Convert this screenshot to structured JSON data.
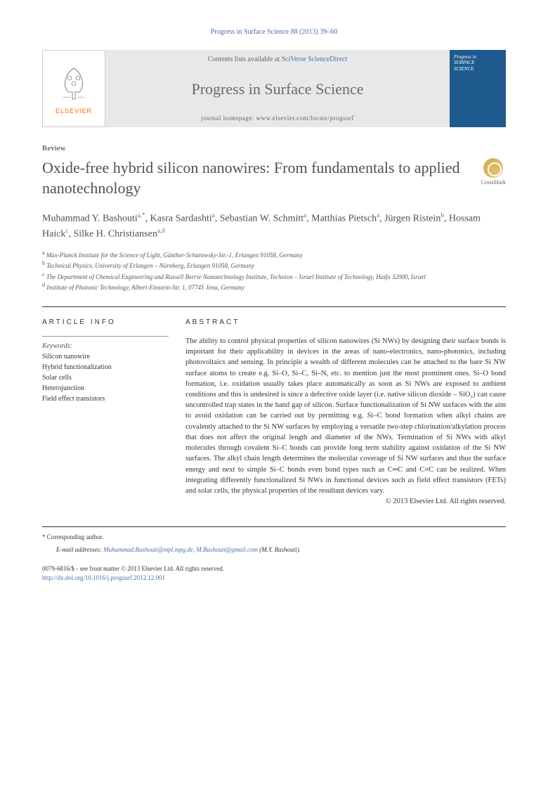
{
  "citation": "Progress in Surface Science 88 (2013) 39–60",
  "banner": {
    "publisher_name": "ELSEVIER",
    "contents_prefix": "Contents lists available at",
    "contents_link": "SciVerse ScienceDirect",
    "journal_name": "Progress in Surface Science",
    "homepage_label": "journal homepage:",
    "homepage_url": "www.elsevier.com/locate/progsurf",
    "cover_line1": "Progress in",
    "cover_line2": "SURFACE",
    "cover_line3": "SCIENCE",
    "logo_color": "#ff6600",
    "banner_bg": "#e8e8e8",
    "cover_bg": "#1e5a8e"
  },
  "article": {
    "type": "Review",
    "title": "Oxide-free hybrid silicon nanowires: From fundamentals to applied nanotechnology",
    "crossmark_label": "CrossMark"
  },
  "authors_html": "Muhammad Y. Bashouti",
  "authors": [
    {
      "name": "Muhammad Y. Bashouti",
      "sup": "a,*"
    },
    {
      "name": "Kasra Sardashti",
      "sup": "a"
    },
    {
      "name": "Sebastian W. Schmitt",
      "sup": "a"
    },
    {
      "name": "Matthias Pietsch",
      "sup": "a"
    },
    {
      "name": "Jürgen Ristein",
      "sup": "b"
    },
    {
      "name": "Hossam Haick",
      "sup": "c"
    },
    {
      "name": "Silke H. Christiansen",
      "sup": "a,d"
    }
  ],
  "affiliations": [
    {
      "sup": "a",
      "text": "Max-Planck Institute for the Science of Light, Günther-Scharowsky-Str.-1, Erlangen 91058, Germany"
    },
    {
      "sup": "b",
      "text": "Technical Physics, University of Erlangen – Nürnberg, Erlangen 91058, Germany"
    },
    {
      "sup": "c",
      "text": "The Department of Chemical Engineering and Russell Berrie Nanotechnology Institute, Technion – Israel Institute of Technology, Haifa 32000, Israel"
    },
    {
      "sup": "d",
      "text": "Institute of Photonic Technology, Albert-Einstein-Str. 1, 07745 Jena, Germany"
    }
  ],
  "info": {
    "heading": "ARTICLE INFO",
    "keywords_label": "Keywords:",
    "keywords": [
      "Silicon nanowire",
      "Hybrid functionalization",
      "Solar cells",
      "Heterojunction",
      "Field effect transistors"
    ]
  },
  "abstract": {
    "heading": "ABSTRACT",
    "text": "The ability to control physical properties of silicon nanowires (Si NWs) by designing their surface bonds is important for their applicability in devices in the areas of nano-electronics, nano-photonics, including photovoltaics and sensing. In principle a wealth of different molecules can be attached to the bare Si NW surface atoms to create e.g. Si–O, Si–C, Si–N, etc. to mention just the most prominent ones. Si–O bond formation, i.e. oxidation usually takes place automatically as soon as Si NWs are exposed to ambient conditions and this is undesired is since a defective oxide layer (i.e. native silicon dioxide – SiO₂) can cause uncontrolled trap states in the band gap of silicon. Surface functionalization of Si NW surfaces with the aim to avoid oxidation can be carried out by permitting e.g. Si–C bond formation when alkyl chains are covalently attached to the Si NW surfaces by employing a versatile two-step chlorination/alkylation process that does not affect the original length and diameter of the NWs. Termination of Si NWs with alkyl molecules through covalent Si–C bonds can provide long term stability against oxidation of the Si NW surfaces. The alkyl chain length determines the molecular coverage of Si NW surfaces and thus the surface energy and next to simple Si–C bonds even bond types such as C═C and C≡C can be realized. When integrating differently functionalized Si NWs in functional devices such as field effect transistors (FETs) and solar cells, the physical properties of the resultant devices vary.",
    "copyright": "© 2013 Elsevier Ltd. All rights reserved."
  },
  "footer": {
    "corresp_marker": "*",
    "corresp_text": "Corresponding author.",
    "email_label": "E-mail addresses:",
    "emails": "Muhammad.Bashouti@mpl.mpg.de, M.Bashouti@gmail.com",
    "email_author": "(M.Y. Bashouti).",
    "issn_line": "0079-6816/$ - see front matter © 2013 Elsevier Ltd. All rights reserved.",
    "doi": "http://dx.doi.org/10.1016/j.progsurf.2012.12.001"
  },
  "colors": {
    "link": "#4a6fa5",
    "text": "#333333",
    "heading": "#505050"
  }
}
